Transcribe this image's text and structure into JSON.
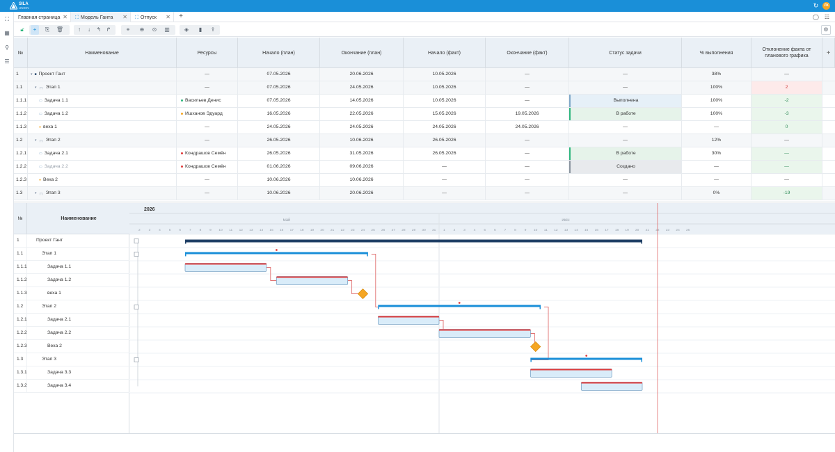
{
  "app": {
    "logo_line1": "SILA",
    "logo_line2": "UNION",
    "avatar": "ЛК",
    "accent": "#1a8fd8"
  },
  "tabs": [
    {
      "label": "Главная страница",
      "active": false
    },
    {
      "label": "Модель Ганта",
      "active": true
    },
    {
      "label": "Отпуск",
      "active": false
    }
  ],
  "grid": {
    "columns": [
      "№",
      "Наименование",
      "Ресурсы",
      "Начало (план)",
      "Окончание (план)",
      "Начало (факт)",
      "Окончание (факт)",
      "Статус задачи",
      "% выполнения",
      "Отклонение факта от планового графика"
    ],
    "rows": [
      {
        "num": "1",
        "name": "Проект Гант",
        "resource": "—",
        "res_color": "",
        "start_plan": "07.05.2026",
        "end_plan": "20.06.2026",
        "start_fact": "10.05.2026",
        "end_fact": "—",
        "status": "—",
        "percent": "38%",
        "deviation": "—",
        "level": 0,
        "kind": "project"
      },
      {
        "num": "1.1",
        "name": "Этап 1",
        "resource": "—",
        "res_color": "",
        "start_plan": "07.05.2026",
        "end_plan": "24.05.2026",
        "start_fact": "10.05.2026",
        "end_fact": "—",
        "status": "—",
        "percent": "100%",
        "deviation": "2",
        "level": 1,
        "kind": "stage",
        "dev_color": "red"
      },
      {
        "num": "1.1.1",
        "name": "Задача 1.1",
        "resource": "Васильев Денис",
        "res_color": "#2eb67d",
        "start_plan": "07.05.2026",
        "end_plan": "14.05.2026",
        "start_fact": "10.05.2026",
        "end_fact": "—",
        "status": "Выполнена",
        "percent": "100%",
        "deviation": "-2",
        "level": 2,
        "kind": "task",
        "status_kind": "done",
        "dev_color": "green"
      },
      {
        "num": "1.1.2",
        "name": "Задача 1.2",
        "resource": "Ишханов Эдуард",
        "res_color": "#f5a623",
        "start_plan": "16.05.2026",
        "end_plan": "22.05.2026",
        "start_fact": "15.05.2026",
        "end_fact": "19.05.2026",
        "status": "В работе",
        "percent": "100%",
        "deviation": "-3",
        "level": 2,
        "kind": "task",
        "status_kind": "work",
        "dev_color": "green"
      },
      {
        "num": "1.1.3",
        "name": "веха 1",
        "resource": "—",
        "res_color": "",
        "start_plan": "24.05.2026",
        "end_plan": "24.05.2026",
        "start_fact": "24.05.2026",
        "end_fact": "24.05.2026",
        "status": "—",
        "percent": "—",
        "deviation": "0",
        "level": 2,
        "kind": "milestone",
        "dev_color": "green"
      },
      {
        "num": "1.2",
        "name": "Этап 2",
        "resource": "—",
        "res_color": "",
        "start_plan": "26.05.2026",
        "end_plan": "10.06.2026",
        "start_fact": "26.05.2026",
        "end_fact": "—",
        "status": "—",
        "percent": "12%",
        "deviation": "—",
        "level": 1,
        "kind": "stage"
      },
      {
        "num": "1.2.1",
        "name": "Задача 2.1",
        "resource": "Кондрашов Семён",
        "res_color": "#e03b3b",
        "start_plan": "26.05.2026",
        "end_plan": "31.05.2026",
        "start_fact": "26.05.2026",
        "end_fact": "—",
        "status": "В работе",
        "percent": "30%",
        "deviation": "—",
        "level": 2,
        "kind": "task",
        "status_kind": "work",
        "dev_color": "green"
      },
      {
        "num": "1.2.2",
        "name": "Задача 2.2",
        "resource": "Кондрашов Семён",
        "res_color": "#e03b3b",
        "start_plan": "01.06.2026",
        "end_plan": "09.06.2026",
        "start_fact": "—",
        "end_fact": "—",
        "status": "Создано",
        "percent": "—",
        "deviation": "—",
        "level": 2,
        "kind": "task",
        "status_kind": "new",
        "dev_color": "green",
        "muted": true
      },
      {
        "num": "1.2.3",
        "name": "Веха 2",
        "resource": "—",
        "res_color": "",
        "start_plan": "10.06.2026",
        "end_plan": "10.06.2026",
        "start_fact": "—",
        "end_fact": "—",
        "status": "—",
        "percent": "—",
        "deviation": "—",
        "level": 2,
        "kind": "milestone"
      },
      {
        "num": "1.3",
        "name": "Этап 3",
        "resource": "—",
        "res_color": "",
        "start_plan": "10.06.2026",
        "end_plan": "20.06.2026",
        "start_fact": "—",
        "end_fact": "—",
        "status": "—",
        "percent": "0%",
        "deviation": "-19",
        "level": 1,
        "kind": "stage",
        "dev_color": "green"
      }
    ]
  },
  "gantt": {
    "header_name": "Наименование",
    "header_num": "№",
    "year": "2026",
    "month_may": "май",
    "month_june": "июн",
    "may_days": [
      "2",
      "3",
      "4",
      "5",
      "6",
      "7",
      "8",
      "9",
      "10",
      "11",
      "12",
      "13",
      "14",
      "15",
      "16",
      "17",
      "18",
      "19",
      "20",
      "21",
      "22",
      "23",
      "24",
      "25",
      "26",
      "27",
      "28",
      "29",
      "30",
      "31"
    ],
    "june_days": [
      "1",
      "2",
      "3",
      "4",
      "5",
      "6",
      "7",
      "8",
      "9",
      "10",
      "11",
      "12",
      "13",
      "14",
      "15",
      "16",
      "17",
      "18",
      "19",
      "20",
      "21",
      "22",
      "23",
      "24",
      "25"
    ],
    "rows": [
      {
        "num": "1",
        "name": "Проект Гант"
      },
      {
        "num": "1.1",
        "name": "Этап 1"
      },
      {
        "num": "1.1.1",
        "name": "Задача 1.1"
      },
      {
        "num": "1.1.2",
        "name": "Задача 1.2"
      },
      {
        "num": "1.1.3",
        "name": "веха 1"
      },
      {
        "num": "1.2",
        "name": "Этап 2"
      },
      {
        "num": "1.2.1",
        "name": "Задача 2.1"
      },
      {
        "num": "1.2.2",
        "name": "Задача 2.2"
      },
      {
        "num": "1.2.3",
        "name": "Веха 2"
      },
      {
        "num": "1.3",
        "name": "Этап 3"
      },
      {
        "num": "1.3.1",
        "name": "Задача 3.3"
      },
      {
        "num": "1.3.2",
        "name": "Задача 3.4"
      }
    ],
    "bars": [
      {
        "row": 0,
        "kind": "project",
        "start": "2026-05-07",
        "end": "2026-06-20"
      },
      {
        "row": 1,
        "kind": "stage",
        "start": "2026-05-07",
        "end": "2026-05-24"
      },
      {
        "row": 2,
        "kind": "task",
        "start": "2026-05-07",
        "end": "2026-05-14"
      },
      {
        "row": 3,
        "kind": "task",
        "start": "2026-05-16",
        "end": "2026-05-22"
      },
      {
        "row": 4,
        "kind": "milestone",
        "start": "2026-05-24",
        "end": "2026-05-24"
      },
      {
        "row": 5,
        "kind": "stage",
        "start": "2026-05-26",
        "end": "2026-06-10"
      },
      {
        "row": 6,
        "kind": "task",
        "start": "2026-05-26",
        "end": "2026-05-31"
      },
      {
        "row": 7,
        "kind": "task",
        "start": "2026-06-01",
        "end": "2026-06-09"
      },
      {
        "row": 8,
        "kind": "milestone",
        "start": "2026-06-10",
        "end": "2026-06-10"
      },
      {
        "row": 9,
        "kind": "stage",
        "start": "2026-06-10",
        "end": "2026-06-20"
      },
      {
        "row": 10,
        "kind": "task",
        "start": "2026-06-10",
        "end": "2026-06-17"
      },
      {
        "row": 11,
        "kind": "task",
        "start": "2026-06-15",
        "end": "2026-06-20"
      }
    ],
    "today": "2026-06-22",
    "colors": {
      "project": "#1f3f66",
      "stage": "#1a8fd8",
      "task_fill": "#d9ecf9",
      "task_border": "#7fa7c8",
      "progress": "#e03b3b",
      "milestone": "#f5a623",
      "link": "#e07070",
      "today": "#e07070"
    }
  }
}
